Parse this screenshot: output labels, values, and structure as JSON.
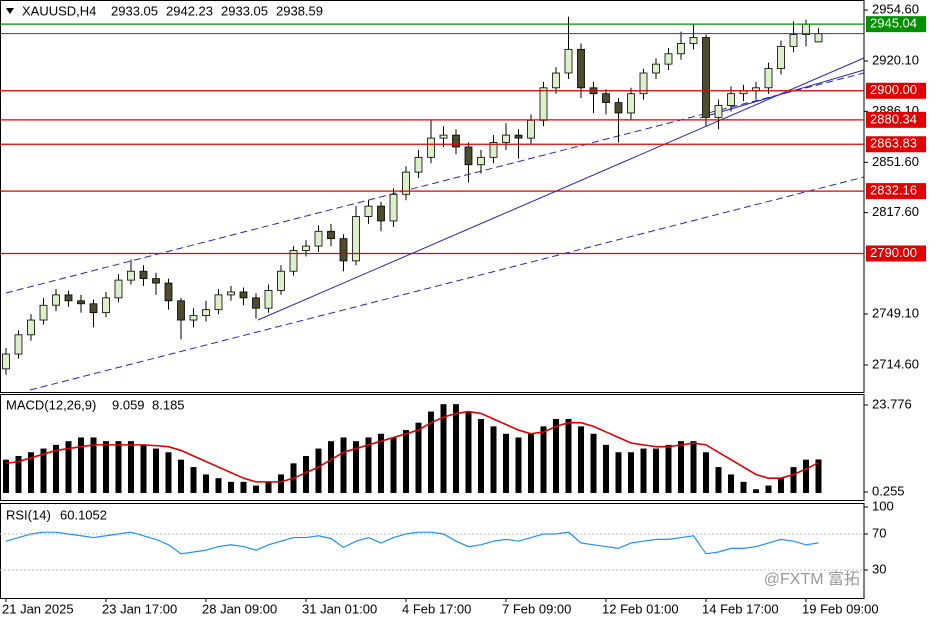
{
  "chart_data": [
    {
      "type": "candlestick",
      "title": "XAUUSD,H4",
      "categories": [
        "21 Jan 2025",
        null,
        null,
        null,
        null,
        null,
        null,
        null,
        "23 Jan 17:00",
        null,
        null,
        null,
        null,
        null,
        null,
        null,
        "28 Jan 09:00",
        null,
        null,
        null,
        null,
        null,
        null,
        null,
        "31 Jan 01:00",
        null,
        null,
        null,
        null,
        null,
        null,
        null,
        "4 Feb 17:00",
        null,
        null,
        null,
        null,
        null,
        null,
        null,
        "7 Feb 09:00",
        null,
        null,
        null,
        null,
        null,
        null,
        null,
        "12 Feb 01:00",
        null,
        null,
        null,
        null,
        null,
        null,
        null,
        "14 Feb 17:00",
        null,
        null,
        null,
        null,
        null,
        null,
        null,
        "19 Feb 09:00",
        null
      ],
      "open": [
        2712,
        2722,
        2735,
        2745,
        2755,
        2762,
        2758,
        2756,
        2750,
        2760,
        2772,
        2778,
        2773,
        2770,
        2758,
        2745,
        2748,
        2752,
        2762,
        2764,
        2760,
        2753,
        2765,
        2778,
        2792,
        2795,
        2805,
        2800,
        2785,
        2815,
        2822,
        2812,
        2830,
        2845,
        2855,
        2868,
        2870,
        2862,
        2850,
        2855,
        2865,
        2870,
        2868,
        2880,
        2902,
        2912,
        2928,
        2902,
        2898,
        2892,
        2885,
        2898,
        2912,
        2918,
        2925,
        2932,
        2936,
        2882,
        2890,
        2898,
        2900,
        2902,
        2915,
        2930,
        2938,
        2933.05
      ],
      "high": [
        2726,
        2738,
        2749,
        2760,
        2766,
        2765,
        2762,
        2759,
        2764,
        2776,
        2786,
        2782,
        2777,
        2773,
        2760,
        2753,
        2758,
        2766,
        2768,
        2767,
        2763,
        2769,
        2782,
        2795,
        2799,
        2809,
        2810,
        2803,
        2822,
        2826,
        2825,
        2834,
        2849,
        2860,
        2880,
        2876,
        2874,
        2865,
        2860,
        2870,
        2878,
        2874,
        2884,
        2906,
        2916,
        2950,
        2932,
        2906,
        2901,
        2895,
        2902,
        2915,
        2922,
        2929,
        2940,
        2945,
        2938,
        2894,
        2903,
        2904,
        2906,
        2919,
        2934,
        2947,
        2948,
        2942.23
      ],
      "low": [
        2708,
        2719,
        2731,
        2742,
        2751,
        2754,
        2750,
        2740,
        2747,
        2757,
        2769,
        2768,
        2762,
        2752,
        2732,
        2740,
        2744,
        2749,
        2758,
        2755,
        2746,
        2750,
        2762,
        2775,
        2788,
        2791,
        2795,
        2778,
        2782,
        2810,
        2805,
        2808,
        2826,
        2841,
        2851,
        2862,
        2857,
        2838,
        2844,
        2851,
        2860,
        2854,
        2864,
        2876,
        2898,
        2908,
        2895,
        2885,
        2884,
        2865,
        2880,
        2894,
        2908,
        2914,
        2921,
        2928,
        2876,
        2874,
        2886,
        2893,
        2894,
        2898,
        2911,
        2926,
        2930,
        2933.05
      ],
      "close": [
        2722,
        2735,
        2745,
        2755,
        2762,
        2758,
        2756,
        2750,
        2760,
        2772,
        2778,
        2773,
        2770,
        2758,
        2745,
        2748,
        2752,
        2762,
        2764,
        2760,
        2753,
        2765,
        2778,
        2792,
        2795,
        2805,
        2800,
        2785,
        2815,
        2822,
        2812,
        2830,
        2845,
        2855,
        2868,
        2870,
        2862,
        2850,
        2855,
        2865,
        2870,
        2868,
        2880,
        2902,
        2912,
        2928,
        2902,
        2898,
        2892,
        2885,
        2898,
        2912,
        2918,
        2925,
        2932,
        2936,
        2882,
        2890,
        2898,
        2900,
        2902,
        2915,
        2930,
        2938,
        2945,
        2938.59
      ],
      "up_color": "#dcefc8",
      "down_color": "#4d4d2e",
      "price_line_color": "#3030c0",
      "ylim": [
        2696.35,
        2961.36
      ],
      "yticks": [
        {
          "value": 2954.6,
          "label": "2954.60"
        },
        {
          "value": 2920.1,
          "label": "2920.10"
        },
        {
          "value": 2886.1,
          "label": "2886.10"
        },
        {
          "value": 2851.6,
          "label": "2851.60"
        },
        {
          "value": 2817.6,
          "label": "2817.60"
        },
        {
          "value": 2749.1,
          "label": "2749.10"
        },
        {
          "value": 2714.6,
          "label": "2714.60"
        }
      ],
      "levels": [
        {
          "value": 2945.04,
          "color": "#009000"
        },
        {
          "value": 2900,
          "label": "2900.00",
          "color": "#e00000"
        },
        {
          "value": 2880.34,
          "color": "#e00000"
        },
        {
          "value": 2863.83,
          "color": "#e00000"
        },
        {
          "value": 2832.16,
          "color": "#e00000"
        },
        {
          "value": 2790,
          "label": "2790.00",
          "color": "#e00000"
        }
      ]
    },
    {
      "type": "macd",
      "title": "MACD(12,26,9)",
      "histogram": [
        9,
        10,
        11,
        12,
        13,
        14,
        15,
        15,
        14,
        14,
        14,
        13,
        12,
        11,
        9,
        7,
        5,
        4,
        3,
        3,
        2,
        3,
        5,
        8,
        10,
        12,
        14,
        15,
        14,
        15,
        16,
        15,
        17,
        19,
        22,
        24,
        24,
        22,
        20,
        18,
        16,
        15,
        16,
        18,
        20,
        20,
        18,
        16,
        13,
        11,
        11,
        12,
        12,
        13,
        14,
        14,
        11,
        7,
        5,
        3,
        1,
        2,
        4,
        7,
        9,
        9.059
      ],
      "signal": [
        8,
        8.5,
        9.5,
        10.5,
        11.5,
        12,
        12.5,
        13,
        13,
        13,
        13,
        13,
        12.8,
        12.5,
        11.5,
        10,
        8.5,
        7,
        5.5,
        4,
        3,
        3,
        3,
        4,
        5.5,
        7,
        9,
        11,
        12,
        13,
        14,
        15,
        16,
        17,
        19,
        20.5,
        21.5,
        22,
        21.5,
        20,
        18.5,
        17,
        16,
        16.5,
        18,
        19,
        19,
        18,
        16.5,
        15,
        13.5,
        13,
        12.5,
        12.5,
        13,
        13.5,
        13,
        11,
        9,
        7,
        5,
        4,
        4,
        5,
        6.5,
        8.185
      ],
      "histogram_color": "#000000",
      "signal_color": "#e00000",
      "ylim": [
        -1.9,
        26.75
      ],
      "yticks": [
        23.776,
        0.255
      ]
    },
    {
      "type": "line",
      "title": "RSI(14)",
      "values": [
        62,
        66,
        70,
        72,
        72,
        70,
        68,
        66,
        68,
        70,
        72,
        68,
        64,
        58,
        48,
        50,
        52,
        56,
        58,
        56,
        52,
        58,
        62,
        66,
        66,
        68,
        65,
        55,
        62,
        66,
        60,
        66,
        70,
        72,
        72,
        70,
        62,
        56,
        58,
        62,
        64,
        62,
        66,
        70,
        70,
        72,
        60,
        58,
        56,
        54,
        60,
        62,
        64,
        64,
        66,
        68,
        48,
        50,
        54,
        54,
        56,
        60,
        64,
        62,
        58,
        60.1052
      ],
      "color": "#1e90ff",
      "ylim": [
        -1.1,
        104.4
      ],
      "yticks": [
        100,
        70,
        30
      ],
      "levels": [
        70,
        30
      ]
    }
  ],
  "watermark": "@FXTM 富拓"
}
